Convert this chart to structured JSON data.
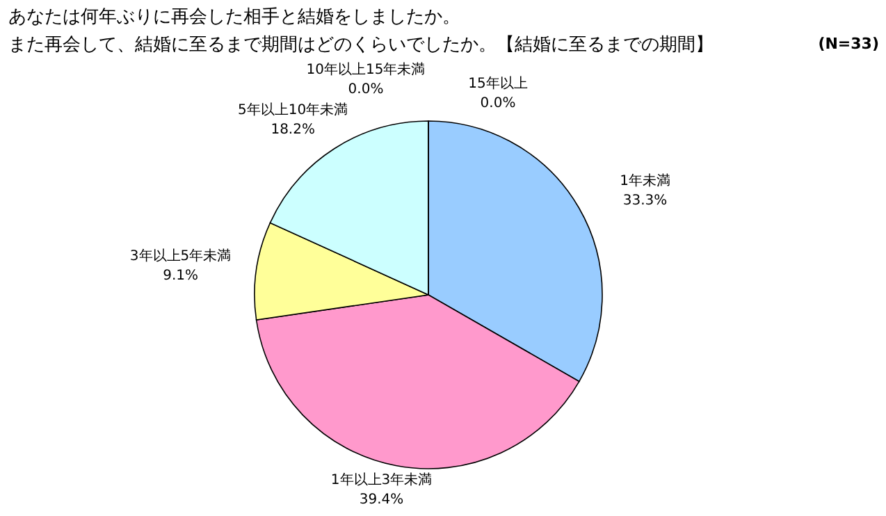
{
  "chart_data": {
    "type": "pie",
    "title": "あなたは何年ぶりに再会した相手と結婚をしましたか。",
    "subtitle": "また再会して、結婚に至るまで期間はどのくらいでしたか。【結婚に至るまでの期間】",
    "annotations": [
      "(N=33)"
    ],
    "categories": [
      "1年未満",
      "1年以上3年未満",
      "3年以上5年未満",
      "5年以上10年未満",
      "10年以上15年未満",
      "15年以上"
    ],
    "values": [
      33.3,
      39.4,
      9.1,
      18.2,
      0.0,
      0.0
    ],
    "value_labels": [
      "33.3%",
      "39.4%",
      "9.1%",
      "18.2%",
      "0.0%",
      "0.0%"
    ],
    "colors": [
      "#99ccff",
      "#ff99cc",
      "#ffff99",
      "#ccffff",
      "#cc99ff",
      "#ffcc99"
    ]
  }
}
